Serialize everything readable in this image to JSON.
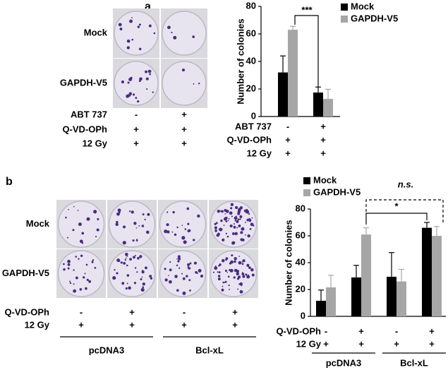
{
  "photo_panels": [
    {
      "label": "a",
      "rows": [
        "Mock",
        "GAPDH-V5"
      ],
      "conditions": [
        {
          "label": "ABT 737",
          "values": [
            "-",
            "+"
          ]
        },
        {
          "label": "Q-VD-OPh",
          "values": [
            "+",
            "+"
          ]
        },
        {
          "label": "12 Gy",
          "values": [
            "+",
            "+"
          ]
        }
      ],
      "groups": []
    },
    {
      "label": "b",
      "rows": [
        "Mock",
        "GAPDH-V5"
      ],
      "conditions": [
        {
          "label": "Q-VD-OPh",
          "values": [
            "-",
            "+",
            "-",
            "+"
          ]
        },
        {
          "label": "12 Gy",
          "values": [
            "+",
            "+",
            "+",
            "+"
          ]
        }
      ],
      "groups": [
        "pcDNA3",
        "Bcl-xL"
      ]
    }
  ],
  "chart_data": [
    {
      "type": "bar",
      "ylabel": "Number of colonies",
      "categories": [
        null,
        null
      ],
      "series": [
        {
          "name": "Mock",
          "color": "#000000",
          "values": [
            32,
            17.4
          ],
          "errors": [
            12,
            4
          ]
        },
        {
          "name": "GAPDH-V5",
          "color": "#a6a6a6",
          "values": [
            63,
            12.8
          ],
          "errors": [
            2.5,
            7
          ]
        }
      ],
      "ylim": [
        0,
        80
      ],
      "yticks": [
        0,
        20,
        40,
        60,
        80
      ],
      "conditions": [
        {
          "label": "ABT 737",
          "values": [
            "-",
            "+"
          ]
        },
        {
          "label": "Q-VD-OPh",
          "values": [
            "+",
            "+"
          ]
        },
        {
          "label": "12 Gy",
          "values": [
            "+",
            "+"
          ]
        }
      ],
      "groups": [],
      "annotations": [
        {
          "text": "***"
        }
      ]
    },
    {
      "type": "bar",
      "ylabel": "Number of colonies",
      "categories": [
        null,
        null,
        null,
        null
      ],
      "series": [
        {
          "name": "Mock",
          "color": "#000000",
          "values": [
            11.6,
            29,
            29.5,
            66
          ],
          "errors": [
            8,
            9,
            18,
            4
          ]
        },
        {
          "name": "GAPDH-V5",
          "color": "#a6a6a6",
          "values": [
            21.6,
            61,
            26,
            60
          ],
          "errors": [
            9,
            5,
            9,
            7
          ]
        }
      ],
      "ylim": [
        0,
        80
      ],
      "yticks": [
        0,
        20,
        40,
        60,
        80
      ],
      "conditions": [
        {
          "label": "Q-VD-OPh",
          "values": [
            "-",
            "+",
            "-",
            "+"
          ]
        },
        {
          "label": "12 Gy",
          "values": [
            "+",
            "+",
            "+",
            "+"
          ]
        }
      ],
      "groups": [
        "pcDNA3",
        "Bcl-xL"
      ],
      "annotations": [
        {
          "text": "*"
        },
        {
          "text": "n.s."
        }
      ]
    }
  ]
}
